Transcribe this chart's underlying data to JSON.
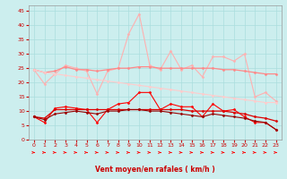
{
  "x": [
    0,
    1,
    2,
    3,
    4,
    5,
    6,
    7,
    8,
    9,
    10,
    11,
    12,
    13,
    14,
    15,
    16,
    17,
    18,
    19,
    20,
    21,
    22,
    23
  ],
  "lines": [
    {
      "label": "line1_light_pink_volatile",
      "color": "#FFB0B0",
      "linewidth": 0.8,
      "marker": "D",
      "markersize": 1.5,
      "values": [
        24.5,
        19.5,
        23.0,
        26.0,
        25.0,
        24.0,
        16.0,
        24.0,
        25.0,
        37.0,
        44.0,
        26.0,
        24.5,
        31.0,
        24.5,
        26.0,
        22.0,
        29.0,
        29.0,
        27.5,
        30.0,
        15.0,
        16.5,
        13.5
      ]
    },
    {
      "label": "line2_medium_pink_flat",
      "color": "#FF8888",
      "linewidth": 0.9,
      "marker": "D",
      "markersize": 1.5,
      "values": [
        24.5,
        23.5,
        24.0,
        25.5,
        24.5,
        24.5,
        24.0,
        24.5,
        25.0,
        25.0,
        25.5,
        25.5,
        25.0,
        25.0,
        25.0,
        25.0,
        25.0,
        25.0,
        24.5,
        24.5,
        24.0,
        23.5,
        23.0,
        23.0
      ]
    },
    {
      "label": "line3_light_diagonal",
      "color": "#FFCCCC",
      "linewidth": 0.8,
      "marker": "D",
      "markersize": 1.5,
      "values": [
        24.5,
        23.5,
        23.0,
        22.5,
        22.0,
        21.5,
        21.0,
        20.5,
        20.0,
        19.5,
        19.0,
        18.5,
        18.0,
        17.5,
        17.0,
        16.5,
        16.0,
        15.5,
        15.0,
        14.5,
        14.0,
        13.5,
        13.0,
        13.0
      ]
    },
    {
      "label": "line4_red_ragged",
      "color": "#FF0000",
      "linewidth": 0.8,
      "marker": "D",
      "markersize": 1.5,
      "values": [
        8.0,
        6.0,
        11.0,
        11.5,
        11.0,
        10.5,
        6.0,
        10.5,
        12.5,
        13.0,
        16.5,
        16.5,
        10.5,
        12.5,
        11.5,
        11.5,
        8.0,
        12.5,
        10.0,
        10.5,
        8.0,
        6.0,
        6.0,
        3.5
      ]
    },
    {
      "label": "line5_red_flat",
      "color": "#DD0000",
      "linewidth": 0.9,
      "marker": "D",
      "markersize": 1.5,
      "values": [
        8.0,
        7.5,
        10.5,
        10.5,
        10.5,
        10.5,
        10.5,
        10.5,
        10.5,
        10.5,
        10.5,
        10.5,
        10.5,
        10.5,
        10.5,
        10.0,
        10.0,
        10.0,
        10.0,
        9.5,
        9.0,
        8.0,
        7.5,
        6.5
      ]
    },
    {
      "label": "line6_dark_red_low",
      "color": "#990000",
      "linewidth": 0.8,
      "marker": "D",
      "markersize": 1.5,
      "values": [
        8.0,
        7.0,
        9.0,
        9.5,
        10.0,
        9.5,
        9.0,
        10.0,
        10.0,
        10.5,
        10.5,
        10.0,
        10.0,
        9.5,
        9.0,
        8.5,
        8.0,
        9.0,
        8.5,
        8.0,
        7.5,
        6.5,
        6.0,
        3.5
      ]
    }
  ],
  "xlabel": "Vent moyen/en rafales ( km/h )",
  "xlim": [
    -0.5,
    23.5
  ],
  "ylim": [
    0,
    47
  ],
  "yticks": [
    0,
    5,
    10,
    15,
    20,
    25,
    30,
    35,
    40,
    45
  ],
  "xticks": [
    0,
    1,
    2,
    3,
    4,
    5,
    6,
    7,
    8,
    9,
    10,
    11,
    12,
    13,
    14,
    15,
    16,
    17,
    18,
    19,
    20,
    21,
    22,
    23
  ],
  "bg_color": "#CCEEEE",
  "grid_color": "#AADDDD",
  "xlabel_color": "#CC0000",
  "tick_color": "#CC0000",
  "arrow_color": "#FF0000"
}
